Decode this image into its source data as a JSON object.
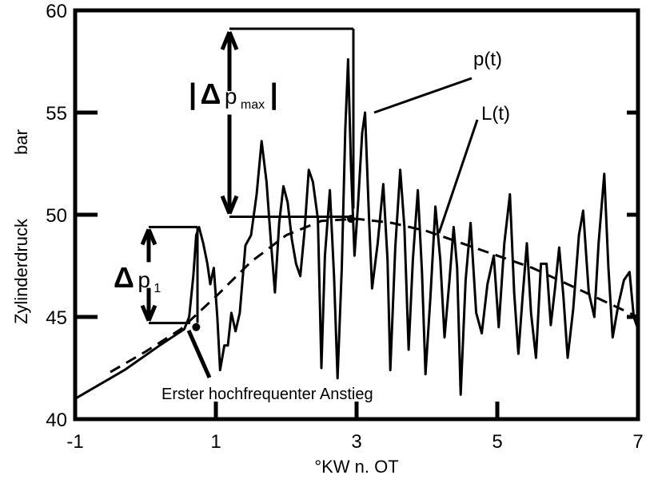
{
  "chart_data": {
    "type": "line",
    "title": "",
    "xlabel": "°KW n. OT",
    "ylabel": "Zylinderdruck",
    "ylabel_unit": "bar",
    "xlim": [
      -1,
      7
    ],
    "ylim": [
      40,
      60
    ],
    "x_ticks": [
      -1,
      1,
      3,
      5,
      7
    ],
    "y_ticks": [
      40,
      45,
      50,
      55,
      60
    ],
    "grid": false,
    "series": [
      {
        "name": "p(t)",
        "style": "solid",
        "points": [
          [
            -1.0,
            41.0
          ],
          [
            -0.3,
            42.4
          ],
          [
            0.2,
            43.6
          ],
          [
            0.55,
            44.4
          ],
          [
            0.62,
            45.0
          ],
          [
            0.68,
            47.0
          ],
          [
            0.72,
            49.0
          ],
          [
            0.76,
            49.4
          ],
          [
            0.82,
            48.6
          ],
          [
            0.88,
            47.6
          ],
          [
            0.92,
            46.6
          ],
          [
            0.97,
            47.4
          ],
          [
            1.02,
            45.0
          ],
          [
            1.06,
            42.4
          ],
          [
            1.12,
            43.6
          ],
          [
            1.17,
            43.6
          ],
          [
            1.22,
            45.2
          ],
          [
            1.28,
            44.3
          ],
          [
            1.34,
            45.2
          ],
          [
            1.42,
            48.5
          ],
          [
            1.5,
            49.0
          ],
          [
            1.58,
            51.0
          ],
          [
            1.65,
            53.6
          ],
          [
            1.72,
            51.6
          ],
          [
            1.78,
            48.8
          ],
          [
            1.84,
            46.2
          ],
          [
            1.9,
            49.6
          ],
          [
            1.96,
            51.4
          ],
          [
            2.02,
            50.6
          ],
          [
            2.08,
            48.8
          ],
          [
            2.14,
            47.6
          ],
          [
            2.2,
            47.0
          ],
          [
            2.26,
            49.2
          ],
          [
            2.32,
            52.2
          ],
          [
            2.38,
            51.6
          ],
          [
            2.45,
            49.8
          ],
          [
            2.5,
            42.5
          ],
          [
            2.55,
            48.0
          ],
          [
            2.62,
            51.2
          ],
          [
            2.68,
            47.0
          ],
          [
            2.73,
            42.0
          ],
          [
            2.79,
            47.4
          ],
          [
            2.84,
            54.2
          ],
          [
            2.88,
            57.6
          ],
          [
            2.92,
            52.4
          ],
          [
            2.97,
            48.0
          ],
          [
            3.02,
            50.5
          ],
          [
            3.08,
            54.0
          ],
          [
            3.12,
            55.0
          ],
          [
            3.18,
            49.6
          ],
          [
            3.22,
            46.4
          ],
          [
            3.3,
            48.6
          ],
          [
            3.38,
            51.5
          ],
          [
            3.44,
            47.8
          ],
          [
            3.48,
            42.4
          ],
          [
            3.55,
            48.4
          ],
          [
            3.62,
            52.2
          ],
          [
            3.68,
            49.4
          ],
          [
            3.74,
            43.4
          ],
          [
            3.8,
            47.8
          ],
          [
            3.87,
            51.2
          ],
          [
            3.93,
            47.2
          ],
          [
            3.98,
            42.2
          ],
          [
            4.05,
            46.0
          ],
          [
            4.12,
            50.4
          ],
          [
            4.19,
            47.8
          ],
          [
            4.25,
            44.0
          ],
          [
            4.32,
            46.8
          ],
          [
            4.38,
            49.4
          ],
          [
            4.43,
            47.4
          ],
          [
            4.48,
            41.2
          ],
          [
            4.55,
            46.8
          ],
          [
            4.62,
            49.6
          ],
          [
            4.7,
            45.2
          ],
          [
            4.78,
            44.2
          ],
          [
            4.86,
            46.6
          ],
          [
            4.95,
            48.0
          ],
          [
            5.02,
            44.5
          ],
          [
            5.1,
            48.6
          ],
          [
            5.18,
            51.0
          ],
          [
            5.24,
            46.2
          ],
          [
            5.3,
            43.2
          ],
          [
            5.36,
            46.0
          ],
          [
            5.42,
            48.6
          ],
          [
            5.48,
            45.2
          ],
          [
            5.55,
            43.0
          ],
          [
            5.62,
            47.6
          ],
          [
            5.7,
            47.6
          ],
          [
            5.76,
            44.6
          ],
          [
            5.82,
            46.4
          ],
          [
            5.88,
            48.4
          ],
          [
            5.94,
            46.0
          ],
          [
            6.0,
            43.0
          ],
          [
            6.08,
            45.4
          ],
          [
            6.16,
            49.0
          ],
          [
            6.22,
            50.2
          ],
          [
            6.3,
            46.2
          ],
          [
            6.38,
            45.0
          ],
          [
            6.44,
            48.6
          ],
          [
            6.52,
            52.0
          ],
          [
            6.58,
            47.4
          ],
          [
            6.64,
            44.0
          ],
          [
            6.72,
            45.6
          ],
          [
            6.8,
            46.8
          ],
          [
            6.88,
            47.2
          ],
          [
            6.94,
            45.0
          ],
          [
            7.0,
            44.4
          ]
        ]
      },
      {
        "name": "L(t)",
        "style": "dashed",
        "points": [
          [
            -0.5,
            42.3
          ],
          [
            0.0,
            43.3
          ],
          [
            0.5,
            44.4
          ],
          [
            1.0,
            46.0
          ],
          [
            1.5,
            47.7
          ],
          [
            2.0,
            49.0
          ],
          [
            2.5,
            49.7
          ],
          [
            3.0,
            49.8
          ],
          [
            3.5,
            49.6
          ],
          [
            4.0,
            49.2
          ],
          [
            4.5,
            48.6
          ],
          [
            5.0,
            48.0
          ],
          [
            5.5,
            47.4
          ],
          [
            6.0,
            46.6
          ],
          [
            6.5,
            45.8
          ],
          [
            7.0,
            45.0
          ]
        ]
      }
    ],
    "markers": [
      {
        "x": 0.72,
        "y": 44.5
      },
      {
        "x": 2.92,
        "y": 49.8
      }
    ],
    "annotations": {
      "delta_p_max": {
        "prefix": "|",
        "delta": "Δ",
        "p": "p",
        "sub": "max",
        "suffix": "|",
        "from": 49.9,
        "to": 59.1
      },
      "delta_p1": {
        "delta": "Δ",
        "p": "p",
        "sub": "1",
        "from": 44.7,
        "to": 49.4
      },
      "series_label_p": "p(t)",
      "series_label_l": "L(t)",
      "note": "Erster hochfrequenter Anstieg"
    }
  }
}
